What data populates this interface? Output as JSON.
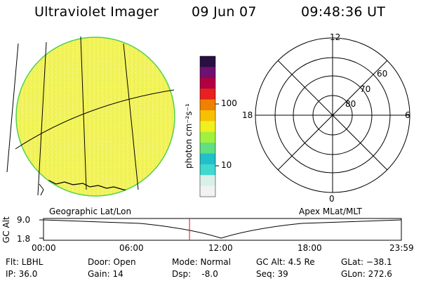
{
  "header": {
    "title": "Ultraviolet Imager",
    "date": "09 Jun 07",
    "time": "09:48:36 UT"
  },
  "geo_panel": {
    "label": "Geographic Lat/Lon"
  },
  "colorbar": {
    "unit_label": "photon cm⁻²s⁻¹",
    "tick_100": "100",
    "tick_10": "10",
    "colors": [
      "#f2f2f2",
      "#d8f0e8",
      "#40d8d0",
      "#20c0c8",
      "#60e080",
      "#a0f040",
      "#f0f020",
      "#f8c000",
      "#f08000",
      "#e82020",
      "#b00040",
      "#701070",
      "#281040"
    ]
  },
  "polar_panel": {
    "label": "Apex MLat/MLT",
    "mlt_labels": {
      "top": "12",
      "left": "18",
      "right": "6",
      "bottom": "0"
    },
    "lat_labels": [
      "60",
      "70",
      "80"
    ]
  },
  "timeline": {
    "ylabel": "GC Alt",
    "y_ticks": [
      "9.0",
      "1.8"
    ],
    "x_ticks": [
      "00:00",
      "06:00",
      "12:00",
      "18:00",
      "23:59"
    ],
    "current_time_fraction": 0.408
  },
  "info": {
    "flt": "Flt: LBHL",
    "ip": "IP: 36.0",
    "door": "Door: Open",
    "gain": "Gain: 14",
    "mode": "Mode: Normal",
    "dsp": "Dsp:    -8.0",
    "gcalt": "GC Alt: 4.5 Re",
    "seq": "Seq: 39",
    "glat": "GLat: −38.1",
    "glon": "GLon: 272.6"
  }
}
